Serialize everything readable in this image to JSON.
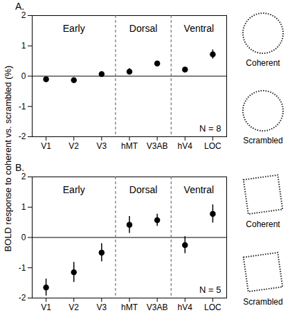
{
  "chart_data": [
    {
      "type": "scatter",
      "panel_label": "A.",
      "y_label": "BOLD response to coherent vs. scrambled (%)",
      "categories": [
        "V1",
        "V2",
        "V3",
        "hMT",
        "V3AB",
        "hV4",
        "LOC"
      ],
      "values": [
        -0.1,
        -0.13,
        0.07,
        0.15,
        0.42,
        0.22,
        0.72
      ],
      "errors": [
        0.07,
        0.05,
        0.07,
        0.1,
        0.08,
        0.07,
        0.15
      ],
      "groups": [
        {
          "label": "Early",
          "categories": [
            "V1",
            "V2",
            "V3"
          ]
        },
        {
          "label": "Dorsal",
          "categories": [
            "hMT",
            "V3AB"
          ]
        },
        {
          "label": "Ventral",
          "categories": [
            "hV4",
            "LOC"
          ]
        }
      ],
      "annotation": "N = 8",
      "stimulus_labels": [
        "Coherent",
        "Scrambled"
      ],
      "ylim": [
        -2,
        2
      ],
      "yticks": [
        -2,
        -1,
        0,
        1,
        2
      ],
      "grid": false,
      "marker": "circle",
      "color": "#000000"
    },
    {
      "type": "scatter",
      "panel_label": "B.",
      "categories": [
        "V1",
        "V2",
        "V3",
        "hMT",
        "V3AB",
        "hV4",
        "LOC"
      ],
      "values": [
        -1.65,
        -1.15,
        -0.5,
        0.42,
        0.57,
        -0.25,
        0.78
      ],
      "errors": [
        0.28,
        0.33,
        0.3,
        0.28,
        0.2,
        0.28,
        0.3
      ],
      "groups": [
        {
          "label": "Early",
          "categories": [
            "V1",
            "V2",
            "V3"
          ]
        },
        {
          "label": "Dorsal",
          "categories": [
            "hMT",
            "V3AB"
          ]
        },
        {
          "label": "Ventral",
          "categories": [
            "hV4",
            "LOC"
          ]
        }
      ],
      "annotation": "N = 5",
      "stimulus_labels": [
        "Coherent",
        "Scrambled"
      ],
      "ylim": [
        -2,
        2
      ],
      "yticks": [
        -2,
        -1,
        0,
        1,
        2
      ],
      "grid": false,
      "marker": "circle",
      "color": "#000000"
    }
  ]
}
